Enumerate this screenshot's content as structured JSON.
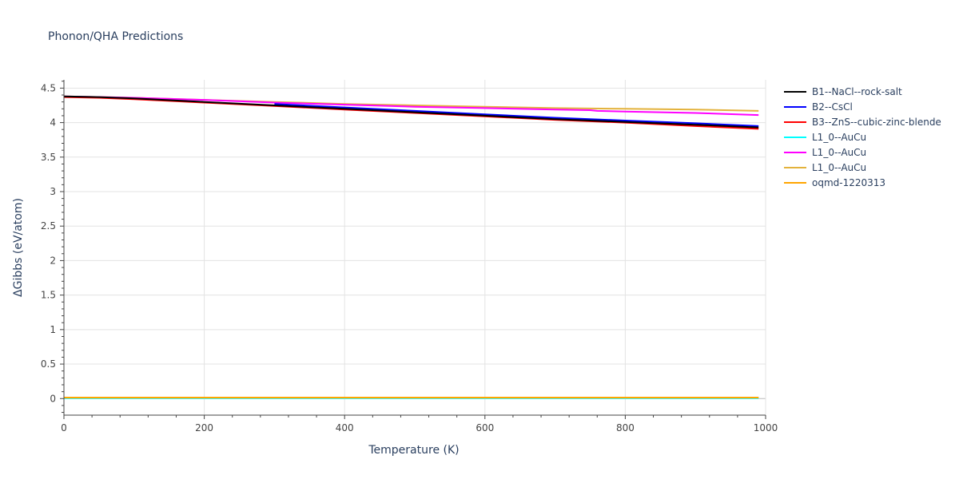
{
  "chart_data": {
    "type": "line",
    "title": "Phonon/QHA Predictions",
    "xlabel": "Temperature (K)",
    "ylabel": "ΔGibbs (eV/atom)",
    "xlim": [
      0,
      1000
    ],
    "ylim": [
      -0.24,
      4.62
    ],
    "xticks": [
      0,
      200,
      400,
      600,
      800,
      1000
    ],
    "yticks": [
      0,
      0.5,
      1,
      1.5,
      2,
      2.5,
      3,
      3.5,
      4,
      4.5
    ],
    "xtick_labels": [
      "0",
      "200",
      "400",
      "600",
      "800",
      "1000"
    ],
    "ytick_labels": [
      "0",
      "0.5",
      "1",
      "1.5",
      "2",
      "2.5",
      "3",
      "3.5",
      "4",
      "4.5"
    ],
    "grid": true,
    "legend_position": "right",
    "series": [
      {
        "name": "B1--NaCl--rock-salt",
        "color": "#000000",
        "x": [
          0,
          50,
          100,
          200,
          300,
          400,
          500,
          600,
          700,
          800,
          900,
          990
        ],
        "y": [
          4.38,
          4.37,
          4.35,
          4.3,
          4.25,
          4.2,
          4.15,
          4.1,
          4.05,
          4.01,
          3.97,
          3.93
        ]
      },
      {
        "name": "B2--CsCl",
        "color": "#0000ff",
        "x": [
          300,
          400,
          500,
          600,
          700,
          800,
          900,
          990
        ],
        "y": [
          4.27,
          4.22,
          4.17,
          4.12,
          4.07,
          4.03,
          3.99,
          3.95
        ]
      },
      {
        "name": "B3--ZnS--cubic-zinc-blende",
        "color": "#ff0000",
        "x": [
          0,
          50,
          100,
          200,
          300,
          400,
          500,
          600,
          700,
          800,
          900,
          990
        ],
        "y": [
          4.37,
          4.36,
          4.34,
          4.29,
          4.24,
          4.19,
          4.14,
          4.09,
          4.04,
          4.0,
          3.95,
          3.91
        ]
      },
      {
        "name": "L1_0--AuCu",
        "color": "#00ffff",
        "x": [
          0,
          200,
          400,
          600,
          800,
          990
        ],
        "y": [
          0.005,
          0.005,
          0.005,
          0.005,
          0.005,
          0.005
        ]
      },
      {
        "name": "L1_0--AuCu",
        "color": "#ff00ff",
        "x": [
          0,
          100,
          200,
          300,
          400,
          500,
          600,
          700,
          750,
          760,
          800,
          900,
          990
        ],
        "y": [
          4.38,
          4.36,
          4.33,
          4.29,
          4.26,
          4.23,
          4.21,
          4.19,
          4.18,
          4.17,
          4.16,
          4.14,
          4.11
        ]
      },
      {
        "name": "L1_0--AuCu",
        "color": "#e3b23c",
        "x": [
          0,
          100,
          200,
          300,
          400,
          500,
          600,
          700,
          800,
          900,
          990
        ],
        "y": [
          4.38,
          4.36,
          4.33,
          4.3,
          4.27,
          4.25,
          4.23,
          4.21,
          4.2,
          4.19,
          4.17
        ]
      },
      {
        "name": "oqmd-1220313",
        "color": "#ffa500",
        "x": [
          0,
          200,
          400,
          600,
          800,
          990
        ],
        "y": [
          0.015,
          0.015,
          0.015,
          0.015,
          0.015,
          0.015
        ]
      }
    ],
    "extra_traces": [
      {
        "color": "#8fce3a",
        "x": [
          0,
          200,
          400,
          600,
          800,
          990
        ],
        "y": [
          0.012,
          0.012,
          0.012,
          0.012,
          0.012,
          0.012
        ]
      }
    ]
  }
}
